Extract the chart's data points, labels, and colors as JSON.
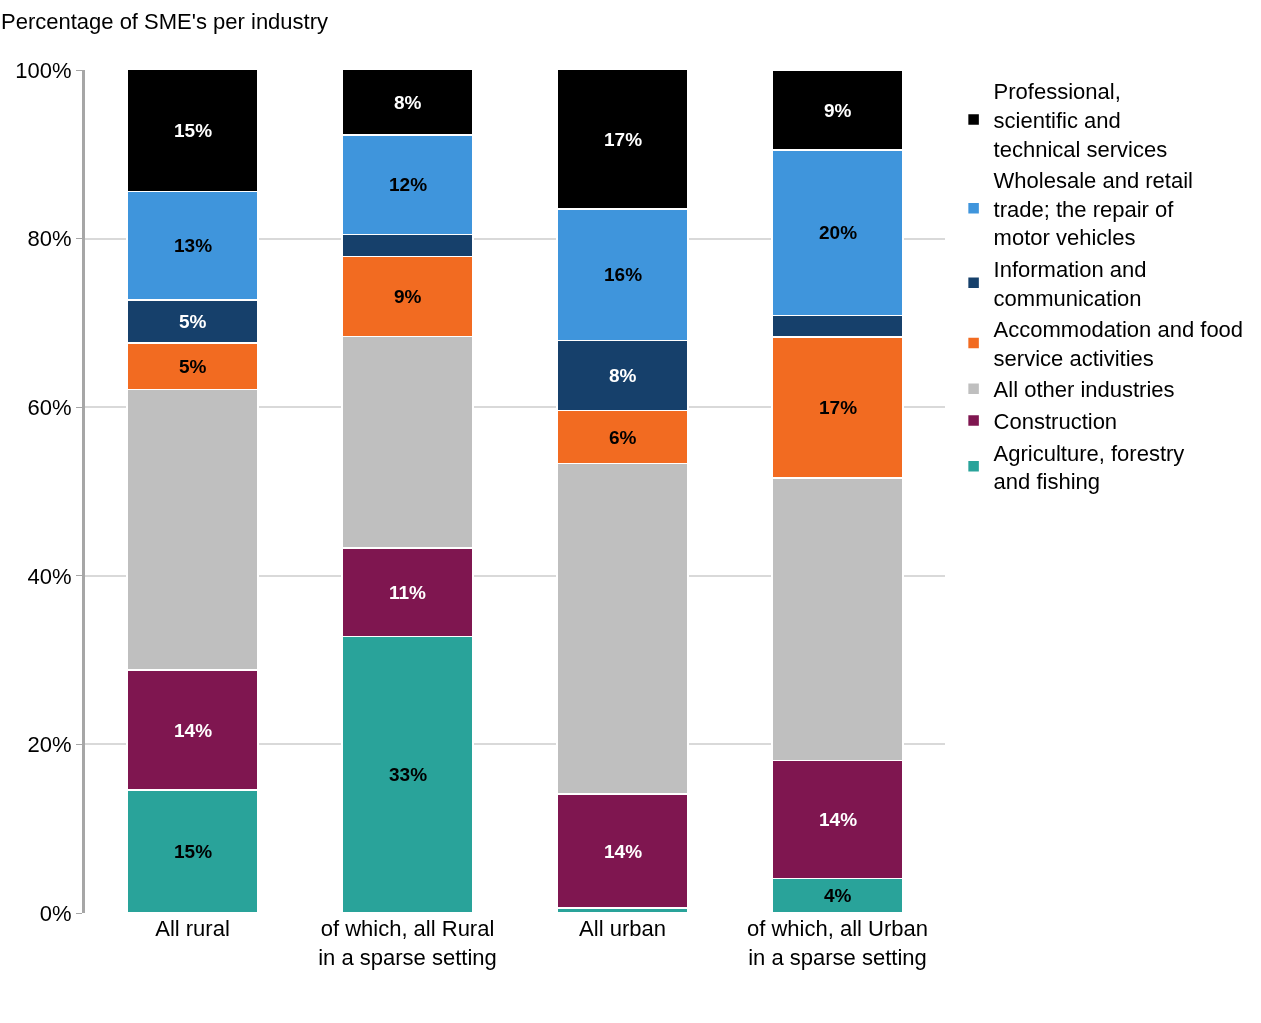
{
  "chart_data": {
    "type": "bar",
    "stacked": true,
    "ylabel": "Percentage of SME's per industry",
    "categories": [
      "All rural",
      "of which, all Rural in a sparse setting",
      "All urban",
      "of which, all Urban in a sparse setting"
    ],
    "series": [
      {
        "name": "Agriculture, forestry and fishing",
        "color": "#29a39a",
        "values": [
          14.6,
          32.8,
          0.6,
          4.1
        ],
        "value_labels": [
          "15%",
          "33%",
          null,
          "4%"
        ]
      },
      {
        "name": "Construction",
        "color": "#7f1650",
        "values": [
          14.2,
          10.5,
          13.5,
          14.0
        ],
        "value_labels": [
          "14%",
          "11%",
          "14%",
          "14%"
        ]
      },
      {
        "name": "All other industries",
        "color": "#bfbfbf",
        "values": [
          33.3,
          25.1,
          39.2,
          33.5
        ],
        "value_labels": [
          null,
          null,
          null,
          null
        ]
      },
      {
        "name": "Accommodation and food service activities",
        "color": "#f26b21",
        "values": [
          5.5,
          9.5,
          6.3,
          16.7
        ],
        "value_labels": [
          "5%",
          "9%",
          "6%",
          "17%"
        ]
      },
      {
        "name": "Information and communication",
        "color": "#16406b",
        "values": [
          5.1,
          2.6,
          8.3,
          2.6
        ],
        "value_labels": [
          "5%",
          null,
          "8%",
          null
        ]
      },
      {
        "name": "Wholesale and retail trade; the repair of motor vehicles",
        "color": "#3f95dc",
        "values": [
          12.9,
          11.8,
          15.6,
          19.6
        ],
        "value_labels": [
          "13%",
          "12%",
          "16%",
          "20%"
        ]
      },
      {
        "name": "Professional, scientific and technical services",
        "color": "#000000",
        "values": [
          14.5,
          7.8,
          16.6,
          9.5
        ],
        "value_labels": [
          "15%",
          "8%",
          "17%",
          "9%"
        ]
      }
    ],
    "ylim": [
      0,
      100
    ],
    "yticks": [
      {
        "value": 0,
        "label": "0%"
      },
      {
        "value": 20,
        "label": "20%"
      },
      {
        "value": 40,
        "label": "40%"
      },
      {
        "value": 60,
        "label": "60%"
      },
      {
        "value": 80,
        "label": "80%"
      },
      {
        "value": 100,
        "label": "100%"
      }
    ],
    "grid": "y",
    "legend": "right"
  }
}
